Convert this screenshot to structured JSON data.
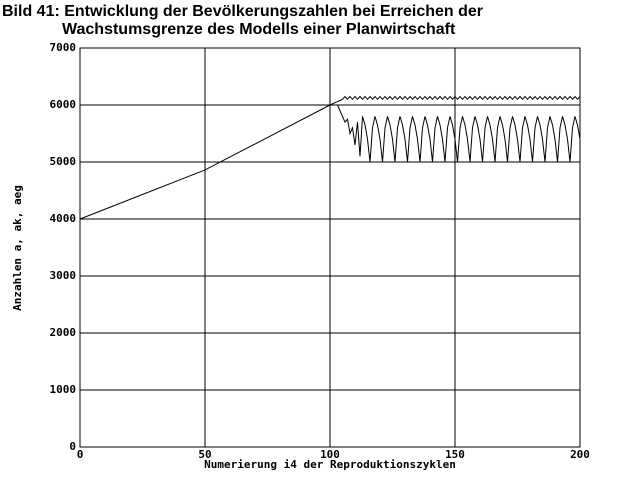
{
  "chart_data": {
    "type": "line",
    "title": [
      "Bild 41: Entwicklung der Bevölkerungszahlen bei Erreichen der",
      "Wachstumsgrenze des Modells einer Planwirtschaft"
    ],
    "xlabel": "Numerierung i4 der Reproduktionszyklen",
    "ylabel": "Anzahlen a, ak, aeg",
    "xlim": [
      0,
      200
    ],
    "ylim": [
      0,
      7000
    ],
    "xticks": [
      0,
      50,
      100,
      150,
      200
    ],
    "yticks": [
      0,
      1000,
      2000,
      3000,
      4000,
      5000,
      6000,
      7000
    ],
    "grid": true,
    "x": [
      0,
      50,
      100,
      101,
      102,
      103,
      104,
      105,
      106,
      107,
      108,
      109,
      110,
      111,
      112,
      113,
      114,
      115,
      116,
      117,
      118,
      119,
      120,
      121,
      122,
      123,
      124,
      125,
      126,
      127,
      128,
      129,
      130,
      131,
      132,
      133,
      134,
      135,
      136,
      137,
      138,
      139,
      140,
      141,
      142,
      143,
      144,
      145,
      146,
      147,
      148,
      149,
      150,
      151,
      152,
      153,
      154,
      155,
      156,
      157,
      158,
      159,
      160,
      161,
      162,
      163,
      164,
      165,
      166,
      167,
      168,
      169,
      170,
      171,
      172,
      173,
      174,
      175,
      176,
      177,
      178,
      179,
      180,
      181,
      182,
      183,
      184,
      185,
      186,
      187,
      188,
      189,
      190,
      191,
      192,
      193,
      194,
      195,
      196,
      197,
      198,
      199,
      200
    ],
    "series": [
      {
        "color": "#000000",
        "values": [
          4000,
          4860,
          6000,
          6020,
          6040,
          6060,
          6080,
          6100,
          6150,
          6100,
          6150,
          6100,
          6150,
          6100,
          6150,
          6100,
          6150,
          6100,
          6150,
          6100,
          6150,
          6100,
          6150,
          6100,
          6150,
          6100,
          6150,
          6100,
          6150,
          6100,
          6150,
          6100,
          6150,
          6100,
          6150,
          6100,
          6150,
          6100,
          6150,
          6100,
          6150,
          6100,
          6150,
          6100,
          6150,
          6100,
          6150,
          6100,
          6150,
          6100,
          6150,
          6100,
          6150,
          6100,
          6150,
          6100,
          6150,
          6100,
          6150,
          6100,
          6150,
          6100,
          6150,
          6100,
          6150,
          6100,
          6150,
          6100,
          6150,
          6100,
          6150,
          6100,
          6150,
          6100,
          6150,
          6100,
          6150,
          6100,
          6150,
          6100,
          6150,
          6100,
          6150,
          6100,
          6150,
          6100,
          6150,
          6100,
          6150,
          6100,
          6150,
          6100,
          6150,
          6100,
          6150,
          6100,
          6150,
          6100,
          6150,
          6100,
          6150,
          6100,
          6150
        ]
      },
      {
        "color": "#000000",
        "values": [
          null,
          null,
          null,
          null,
          null,
          6000,
          5900,
          5800,
          5700,
          5750,
          5500,
          5600,
          5300,
          5700,
          5100,
          5800,
          5650,
          5400,
          5000,
          5600,
          5800,
          5650,
          5400,
          5000,
          5600,
          5800,
          5650,
          5400,
          5000,
          5600,
          5800,
          5650,
          5400,
          5000,
          5600,
          5800,
          5650,
          5400,
          5000,
          5600,
          5800,
          5650,
          5400,
          5000,
          5600,
          5800,
          5650,
          5400,
          5000,
          5600,
          5800,
          5650,
          5400,
          5000,
          5600,
          5800,
          5650,
          5400,
          5000,
          5600,
          5800,
          5650,
          5400,
          5000,
          5600,
          5800,
          5650,
          5400,
          5000,
          5600,
          5800,
          5650,
          5400,
          5000,
          5600,
          5800,
          5650,
          5400,
          5000,
          5600,
          5800,
          5650,
          5400,
          5000,
          5600,
          5800,
          5650,
          5400,
          5000,
          5600,
          5800,
          5650,
          5400,
          5000,
          5600,
          5800,
          5650,
          5400,
          5000,
          5600,
          5800,
          5650,
          5400
        ]
      }
    ]
  }
}
